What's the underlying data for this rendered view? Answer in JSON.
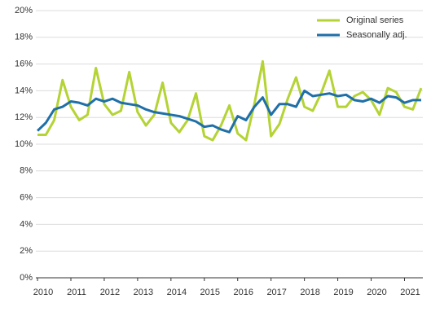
{
  "chart_data": {
    "type": "line",
    "x": [
      2010,
      2010.25,
      2010.5,
      2010.75,
      2011,
      2011.25,
      2011.5,
      2011.75,
      2012,
      2012.25,
      2012.5,
      2012.75,
      2013,
      2013.25,
      2013.5,
      2013.75,
      2014,
      2014.25,
      2014.5,
      2014.75,
      2015,
      2015.25,
      2015.5,
      2015.75,
      2016,
      2016.25,
      2016.5,
      2016.75,
      2017,
      2017.25,
      2017.5,
      2017.75,
      2018,
      2018.25,
      2018.5,
      2018.75,
      2019,
      2019.25,
      2019.5,
      2019.75,
      2020,
      2020.25,
      2020.5,
      2020.75,
      2021,
      2021.25,
      2021.5
    ],
    "series": [
      {
        "name": "Original series",
        "color": "#b4d334",
        "values": [
          10.7,
          10.7,
          11.8,
          14.8,
          12.8,
          11.8,
          12.2,
          15.7,
          13.0,
          12.2,
          12.5,
          15.4,
          12.4,
          11.4,
          12.2,
          14.6,
          11.6,
          10.9,
          11.8,
          13.8,
          10.6,
          10.3,
          11.4,
          12.9,
          10.8,
          10.3,
          13.0,
          16.2,
          10.6,
          11.5,
          13.4,
          15.0,
          12.8,
          12.5,
          13.8,
          15.5,
          12.8,
          12.8,
          13.6,
          13.9,
          13.3,
          12.2,
          14.2,
          13.9,
          12.8,
          12.6,
          14.2
        ]
      },
      {
        "name": "Seasonally adj.",
        "color": "#1f6fa8",
        "values": [
          11.0,
          11.6,
          12.6,
          12.8,
          13.2,
          13.1,
          12.9,
          13.4,
          13.2,
          13.4,
          13.1,
          13.0,
          12.9,
          12.6,
          12.4,
          12.3,
          12.2,
          12.1,
          11.9,
          11.7,
          11.3,
          11.4,
          11.1,
          10.9,
          12.1,
          11.8,
          12.8,
          13.5,
          12.2,
          13.0,
          13.0,
          12.8,
          14.0,
          13.6,
          13.7,
          13.8,
          13.6,
          13.7,
          13.3,
          13.2,
          13.4,
          13.1,
          13.6,
          13.5,
          13.1,
          13.3,
          13.3
        ]
      }
    ],
    "xlim": [
      2009.95,
      2021.55
    ],
    "xticks": [
      2010,
      2011,
      2012,
      2013,
      2014,
      2015,
      2016,
      2017,
      2018,
      2019,
      2020,
      2021
    ],
    "ylim": [
      0,
      20
    ],
    "yticks": [
      {
        "value": 0,
        "label": "0%"
      },
      {
        "value": 2,
        "label": "2%"
      },
      {
        "value": 4,
        "label": "4%"
      },
      {
        "value": 6,
        "label": "6%"
      },
      {
        "value": 8,
        "label": "8%"
      },
      {
        "value": 10,
        "label": "10%"
      },
      {
        "value": 12,
        "label": "12%"
      },
      {
        "value": 14,
        "label": "14%"
      },
      {
        "value": 16,
        "label": "16%"
      },
      {
        "value": 18,
        "label": "18%"
      },
      {
        "value": 20,
        "label": "20%"
      }
    ],
    "grid": true,
    "legend": "top-right"
  }
}
